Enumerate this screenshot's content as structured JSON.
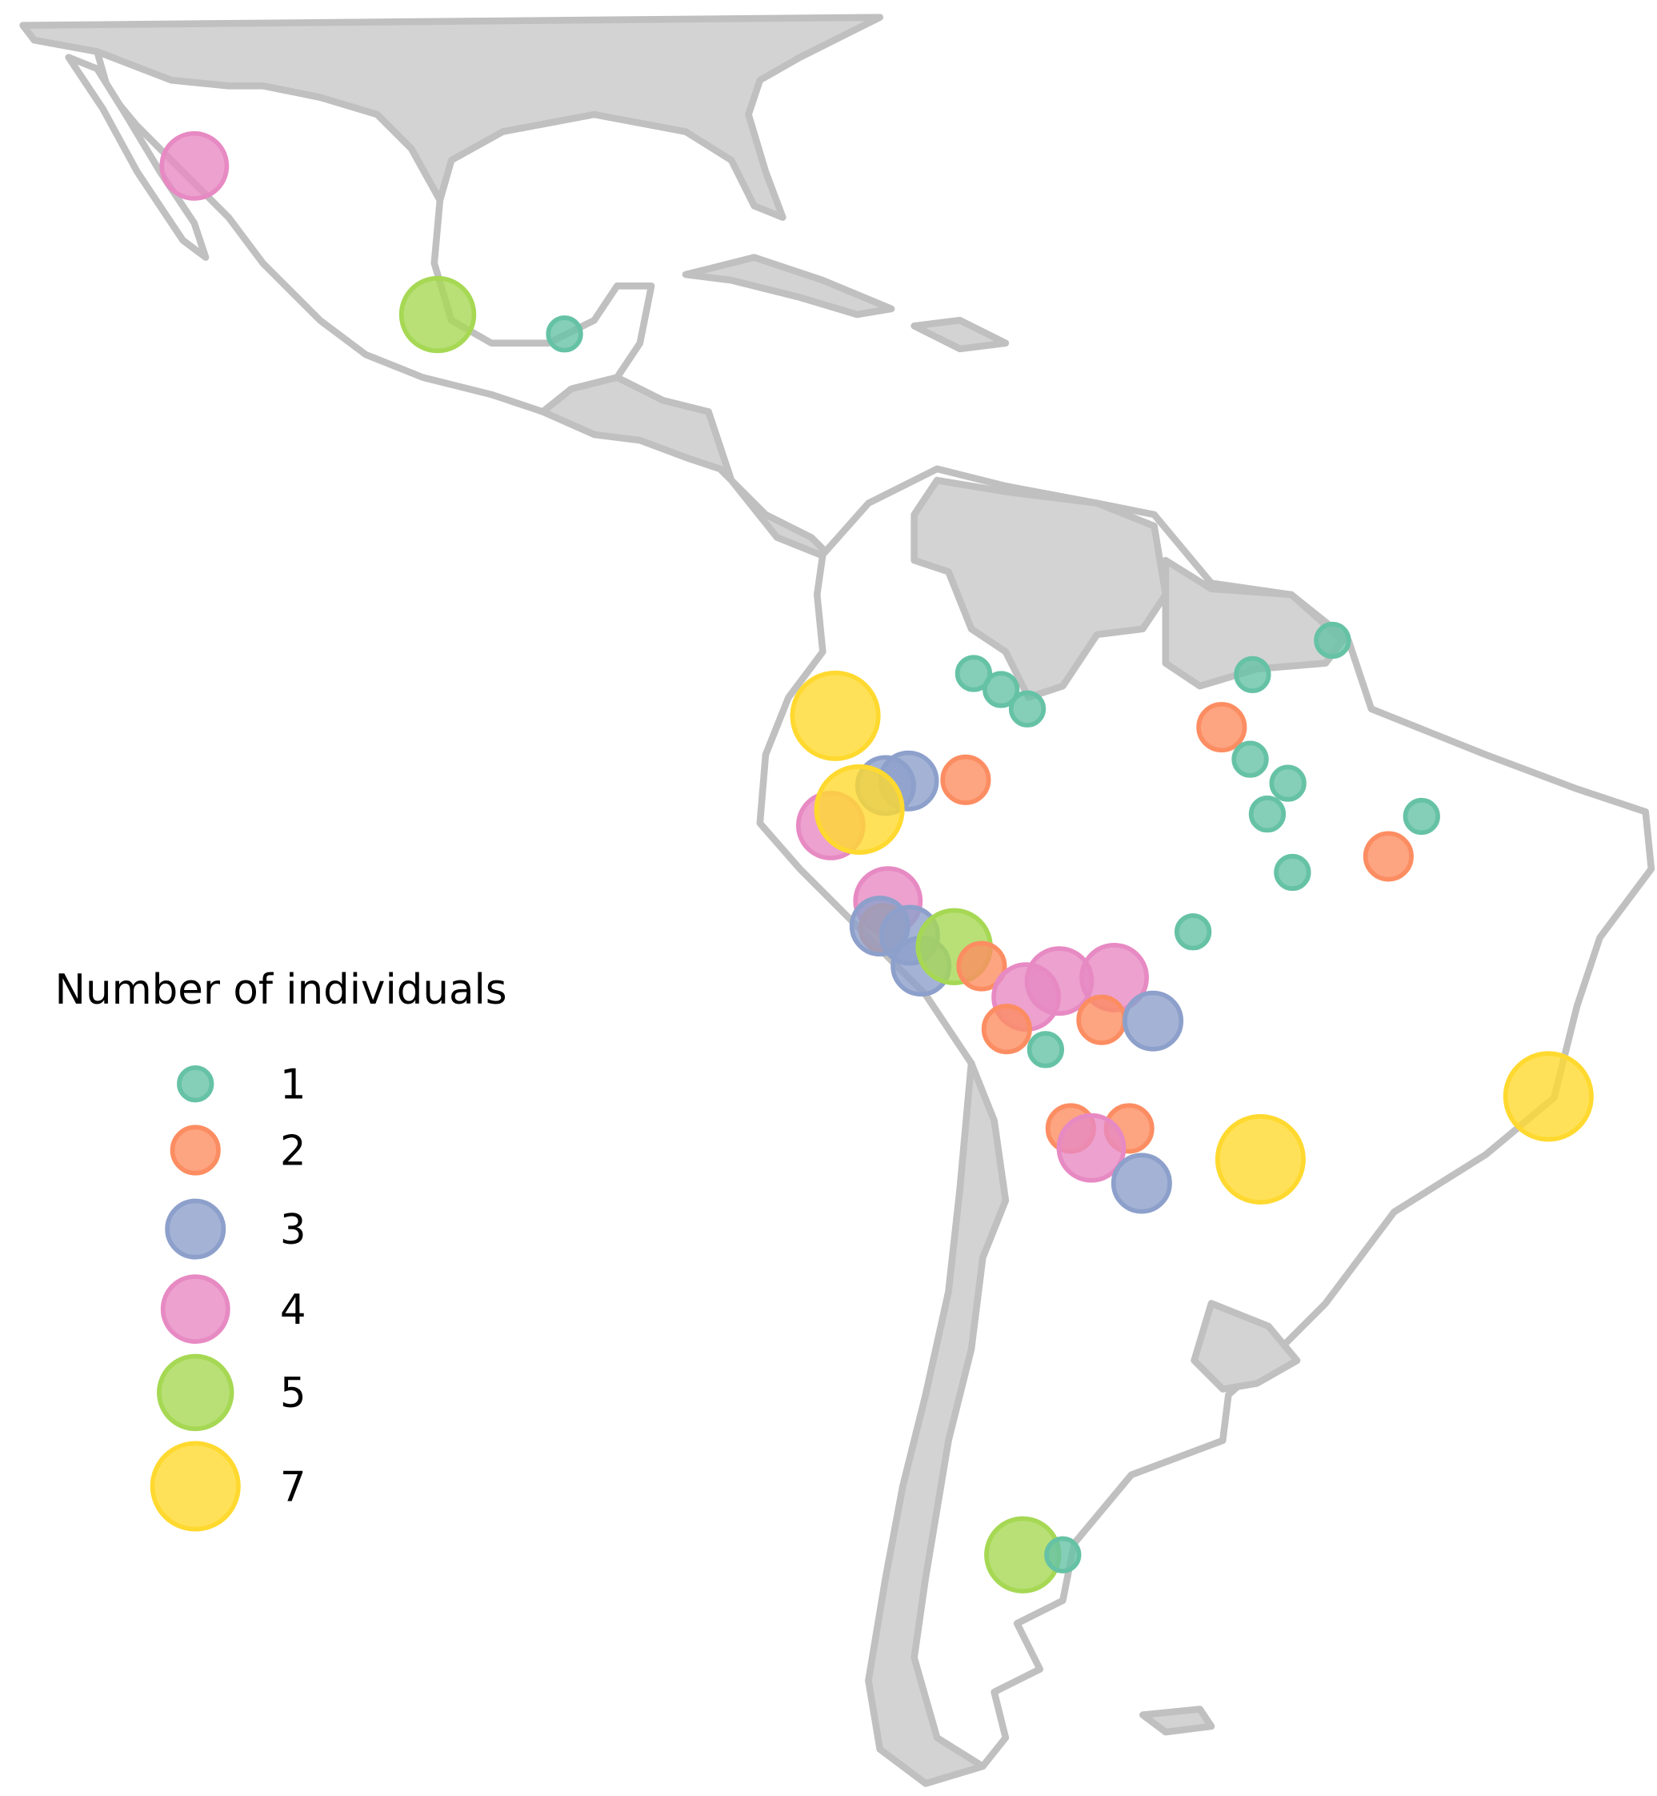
{
  "chart_data": {
    "type": "bubble-map",
    "legend_title": "Number of individuals",
    "levels": [
      1,
      2,
      3,
      4,
      5,
      7
    ],
    "colors": [
      "#66c2a5",
      "#fc8d62",
      "#8da0cb",
      "#e78ac3",
      "#a6d854",
      "#ffd92f"
    ],
    "counts": [
      4,
      5,
      1,
      7,
      1,
      1,
      1,
      2,
      3,
      3,
      4,
      7,
      4,
      2,
      3,
      3,
      3,
      5,
      2,
      4,
      4,
      4,
      2,
      3,
      2,
      1,
      2,
      2,
      4,
      3,
      7,
      7,
      1,
      1,
      2,
      1,
      1,
      1,
      1,
      2,
      1,
      1,
      5,
      1
    ]
  }
}
